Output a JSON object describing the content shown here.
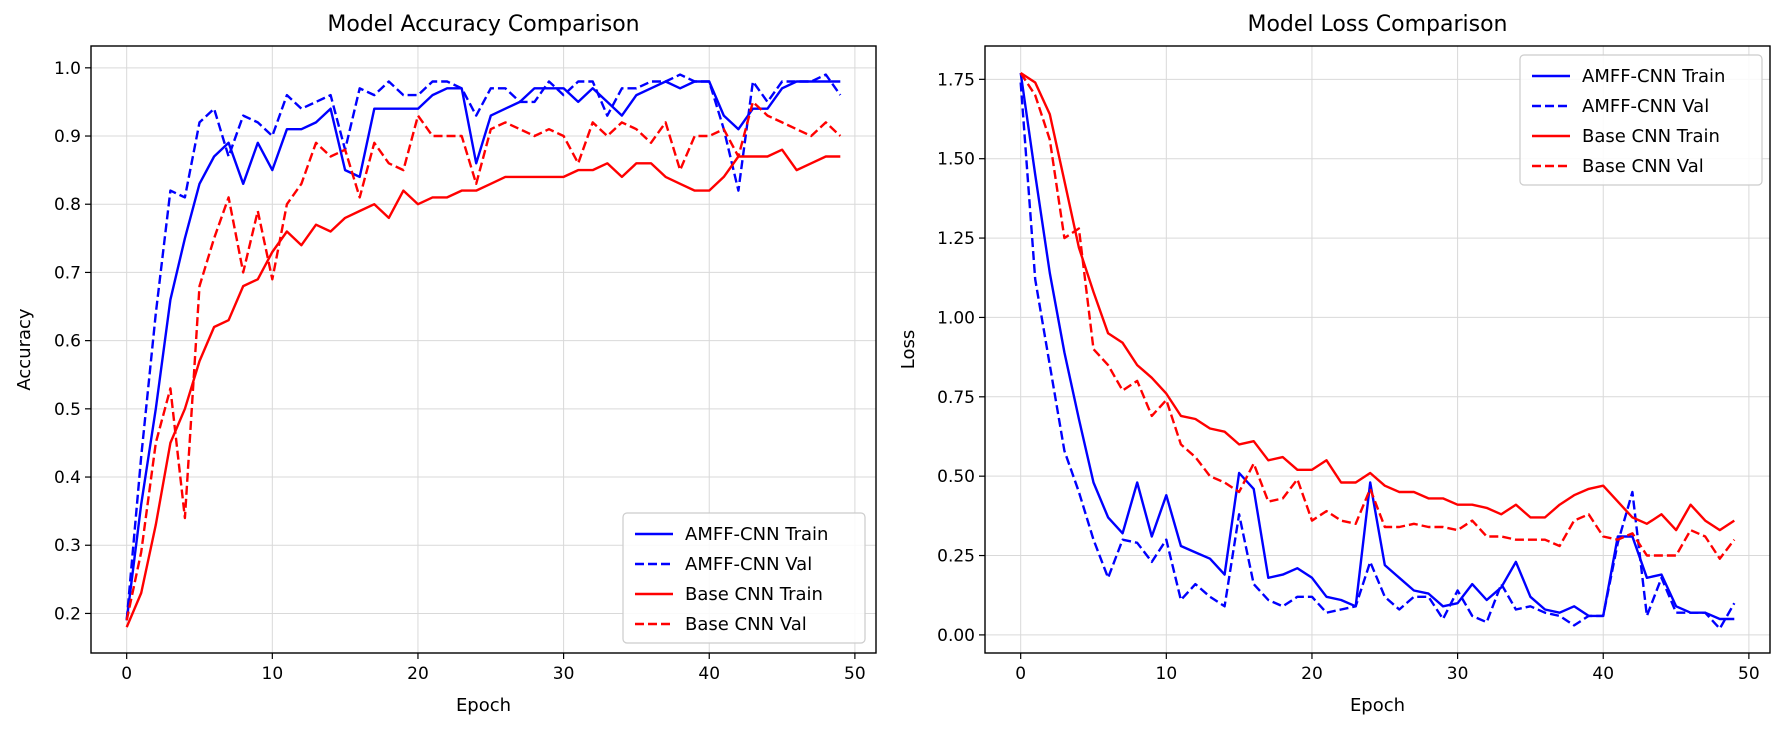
{
  "chart_data": [
    {
      "type": "line",
      "title": "Model Accuracy Comparison",
      "xlabel": "Epoch",
      "ylabel": "Accuracy",
      "xlim": [
        -2.45,
        51.45
      ],
      "ylim": [
        0.142,
        1.032
      ],
      "xticks": [
        0,
        10,
        20,
        30,
        40,
        50
      ],
      "xtick_labels": [
        "0",
        "10",
        "20",
        "30",
        "40",
        "50"
      ],
      "yticks": [
        0.2,
        0.3,
        0.4,
        0.5,
        0.6,
        0.7,
        0.8,
        0.9,
        1.0
      ],
      "ytick_labels": [
        "0.2",
        "0.3",
        "0.4",
        "0.5",
        "0.6",
        "0.7",
        "0.8",
        "0.9",
        "1.0"
      ],
      "grid": true,
      "legend_position": "lower-right",
      "series": [
        {
          "name": "AMFF-CNN Train",
          "color": "#0000ff",
          "dash": "solid",
          "values": [
            0.19,
            0.36,
            0.5,
            0.66,
            0.75,
            0.83,
            0.87,
            0.89,
            0.83,
            0.89,
            0.85,
            0.91,
            0.91,
            0.92,
            0.94,
            0.85,
            0.84,
            0.94,
            0.94,
            0.94,
            0.94,
            0.96,
            0.97,
            0.97,
            0.86,
            0.93,
            0.94,
            0.95,
            0.97,
            0.97,
            0.97,
            0.95,
            0.97,
            0.95,
            0.93,
            0.96,
            0.97,
            0.98,
            0.97,
            0.98,
            0.98,
            0.93,
            0.91,
            0.94,
            0.94,
            0.97,
            0.98,
            0.98,
            0.98,
            0.98
          ]
        },
        {
          "name": "AMFF-CNN Val",
          "color": "#0000ff",
          "dash": "dashed",
          "values": [
            0.19,
            0.43,
            0.64,
            0.82,
            0.81,
            0.92,
            0.94,
            0.87,
            0.93,
            0.92,
            0.9,
            0.96,
            0.94,
            0.95,
            0.96,
            0.88,
            0.97,
            0.96,
            0.98,
            0.96,
            0.96,
            0.98,
            0.98,
            0.97,
            0.93,
            0.97,
            0.97,
            0.95,
            0.95,
            0.98,
            0.96,
            0.98,
            0.98,
            0.93,
            0.97,
            0.97,
            0.98,
            0.98,
            0.99,
            0.98,
            0.98,
            0.91,
            0.82,
            0.98,
            0.95,
            0.98,
            0.98,
            0.98,
            0.99,
            0.96
          ]
        },
        {
          "name": "Base CNN Train",
          "color": "#ff0000",
          "dash": "solid",
          "values": [
            0.18,
            0.23,
            0.33,
            0.45,
            0.5,
            0.57,
            0.62,
            0.63,
            0.68,
            0.69,
            0.73,
            0.76,
            0.74,
            0.77,
            0.76,
            0.78,
            0.79,
            0.8,
            0.78,
            0.82,
            0.8,
            0.81,
            0.81,
            0.82,
            0.82,
            0.83,
            0.84,
            0.84,
            0.84,
            0.84,
            0.84,
            0.85,
            0.85,
            0.86,
            0.84,
            0.86,
            0.86,
            0.84,
            0.83,
            0.82,
            0.82,
            0.84,
            0.87,
            0.87,
            0.87,
            0.88,
            0.85,
            0.86,
            0.87,
            0.87
          ]
        },
        {
          "name": "Base CNN Val",
          "color": "#ff0000",
          "dash": "dashed",
          "values": [
            0.19,
            0.29,
            0.45,
            0.53,
            0.34,
            0.68,
            0.75,
            0.81,
            0.7,
            0.79,
            0.69,
            0.8,
            0.83,
            0.89,
            0.87,
            0.88,
            0.81,
            0.89,
            0.86,
            0.85,
            0.93,
            0.9,
            0.9,
            0.9,
            0.83,
            0.91,
            0.92,
            0.91,
            0.9,
            0.91,
            0.9,
            0.86,
            0.92,
            0.9,
            0.92,
            0.91,
            0.89,
            0.92,
            0.85,
            0.9,
            0.9,
            0.91,
            0.87,
            0.95,
            0.93,
            0.92,
            0.91,
            0.9,
            0.92,
            0.9
          ]
        }
      ]
    },
    {
      "type": "line",
      "title": "Model Loss Comparison",
      "xlabel": "Epoch",
      "ylabel": "Loss",
      "xlim": [
        -2.45,
        51.45
      ],
      "ylim": [
        -0.057,
        1.855
      ],
      "xticks": [
        0,
        10,
        20,
        30,
        40,
        50
      ],
      "xtick_labels": [
        "0",
        "10",
        "20",
        "30",
        "40",
        "50"
      ],
      "yticks": [
        0.0,
        0.25,
        0.5,
        0.75,
        1.0,
        1.25,
        1.5,
        1.75
      ],
      "ytick_labels": [
        "0.00",
        "0.25",
        "0.50",
        "0.75",
        "1.00",
        "1.25",
        "1.50",
        "1.75"
      ],
      "grid": true,
      "legend_position": "upper-right",
      "series": [
        {
          "name": "AMFF-CNN Train",
          "color": "#0000ff",
          "dash": "solid",
          "values": [
            1.77,
            1.45,
            1.14,
            0.89,
            0.68,
            0.48,
            0.37,
            0.32,
            0.48,
            0.31,
            0.44,
            0.28,
            0.26,
            0.24,
            0.19,
            0.51,
            0.46,
            0.18,
            0.19,
            0.21,
            0.18,
            0.12,
            0.11,
            0.09,
            0.48,
            0.22,
            0.18,
            0.14,
            0.13,
            0.09,
            0.1,
            0.16,
            0.11,
            0.15,
            0.23,
            0.12,
            0.08,
            0.07,
            0.09,
            0.06,
            0.06,
            0.31,
            0.31,
            0.18,
            0.19,
            0.09,
            0.07,
            0.07,
            0.05,
            0.05
          ]
        },
        {
          "name": "AMFF-CNN Val",
          "color": "#0000ff",
          "dash": "dashed",
          "values": [
            1.74,
            1.12,
            0.85,
            0.58,
            0.45,
            0.3,
            0.18,
            0.3,
            0.29,
            0.23,
            0.3,
            0.11,
            0.16,
            0.12,
            0.09,
            0.38,
            0.16,
            0.11,
            0.09,
            0.12,
            0.12,
            0.07,
            0.08,
            0.09,
            0.23,
            0.12,
            0.08,
            0.12,
            0.12,
            0.05,
            0.14,
            0.06,
            0.04,
            0.16,
            0.08,
            0.09,
            0.07,
            0.06,
            0.03,
            0.06,
            0.06,
            0.29,
            0.45,
            0.06,
            0.18,
            0.07,
            0.07,
            0.07,
            0.02,
            0.1
          ]
        },
        {
          "name": "Base CNN Train",
          "color": "#ff0000",
          "dash": "solid",
          "values": [
            1.77,
            1.74,
            1.64,
            1.43,
            1.22,
            1.08,
            0.95,
            0.92,
            0.85,
            0.81,
            0.76,
            0.69,
            0.68,
            0.65,
            0.64,
            0.6,
            0.61,
            0.55,
            0.56,
            0.52,
            0.52,
            0.55,
            0.48,
            0.48,
            0.51,
            0.47,
            0.45,
            0.45,
            0.43,
            0.43,
            0.41,
            0.41,
            0.4,
            0.38,
            0.41,
            0.37,
            0.37,
            0.41,
            0.44,
            0.46,
            0.47,
            0.42,
            0.37,
            0.35,
            0.38,
            0.33,
            0.41,
            0.36,
            0.33,
            0.36
          ]
        },
        {
          "name": "Base CNN Val",
          "color": "#ff0000",
          "dash": "dashed",
          "values": [
            1.77,
            1.7,
            1.56,
            1.25,
            1.28,
            0.9,
            0.85,
            0.77,
            0.8,
            0.69,
            0.74,
            0.6,
            0.56,
            0.5,
            0.48,
            0.45,
            0.54,
            0.42,
            0.43,
            0.49,
            0.36,
            0.39,
            0.36,
            0.35,
            0.46,
            0.34,
            0.34,
            0.35,
            0.34,
            0.34,
            0.33,
            0.36,
            0.31,
            0.31,
            0.3,
            0.3,
            0.3,
            0.28,
            0.36,
            0.38,
            0.31,
            0.3,
            0.32,
            0.25,
            0.25,
            0.25,
            0.33,
            0.31,
            0.24,
            0.3
          ]
        }
      ]
    }
  ]
}
